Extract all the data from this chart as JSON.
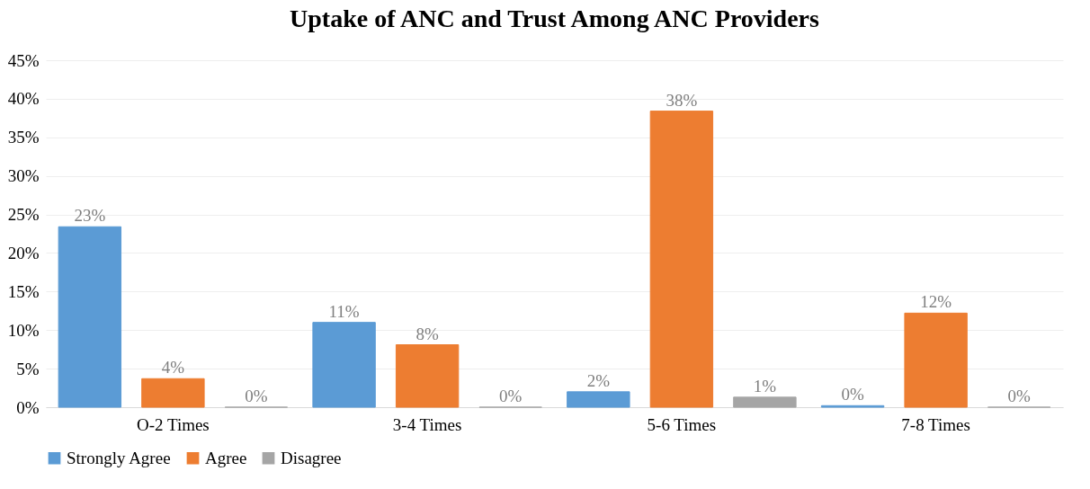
{
  "chart_data": {
    "type": "bar",
    "title": "Uptake of ANC and Trust Among ANC Providers",
    "categories": [
      "O-2 Times",
      "3-4 Times",
      "5-6 Times",
      "7-8 Times"
    ],
    "series": [
      {
        "name": "Strongly Agree",
        "color": "#5b9bd5",
        "values": [
          23.4,
          11,
          2,
          0.2
        ],
        "value_labels": [
          "23%",
          "11%",
          "2%",
          "0%"
        ]
      },
      {
        "name": "Agree",
        "color": "#ed7d31",
        "values": [
          3.7,
          8.1,
          38.4,
          12.2
        ],
        "value_labels": [
          "4%",
          "8%",
          "38%",
          "12%"
        ]
      },
      {
        "name": "Disagree",
        "color": "#a5a5a5",
        "values": [
          0,
          0,
          1.3,
          0
        ],
        "value_labels": [
          "0%",
          "0%",
          "1%",
          "0%"
        ]
      }
    ],
    "ylim": [
      0,
      45
    ],
    "yticks": [
      {
        "value": 0,
        "label": "0%"
      },
      {
        "value": 5,
        "label": "5%"
      },
      {
        "value": 10,
        "label": "10%"
      },
      {
        "value": 15,
        "label": "15%"
      },
      {
        "value": 20,
        "label": "20%"
      },
      {
        "value": 25,
        "label": "25%"
      },
      {
        "value": 30,
        "label": "30%"
      },
      {
        "value": 35,
        "label": "35%"
      },
      {
        "value": 40,
        "label": "40%"
      },
      {
        "value": 45,
        "label": "45%"
      }
    ],
    "grid": "y",
    "legend": "bottom"
  }
}
